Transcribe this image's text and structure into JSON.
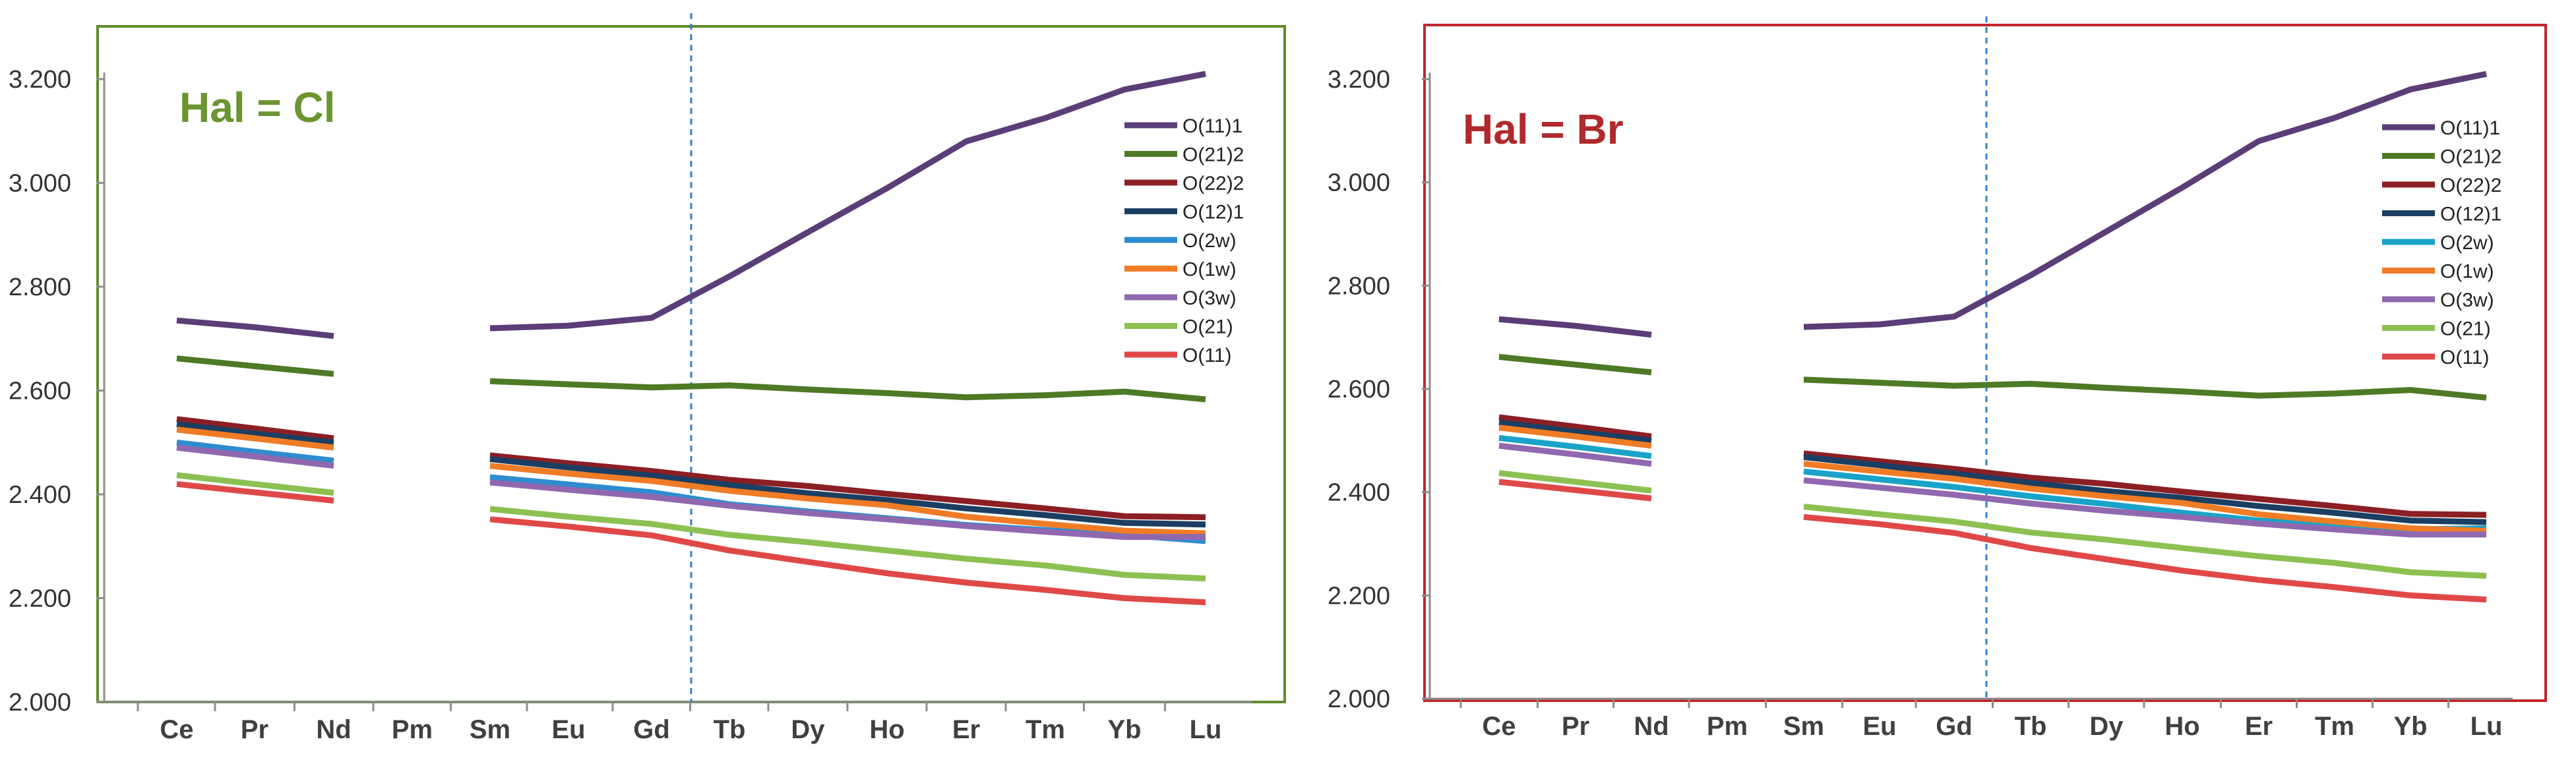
{
  "charts": [
    {
      "id": "cl",
      "title": "Hal = Cl",
      "title_color": "#6b9530",
      "frame_color": "#5e8a2a",
      "divider_label": "Gd|Tb"
    },
    {
      "id": "br",
      "title": "Hal = Br",
      "title_color": "#b0292c",
      "frame_color": "#c0272d",
      "divider_label": "Gd|Tb"
    }
  ],
  "chart_data": [
    {
      "type": "line",
      "title": "Hal = Cl",
      "categories": [
        "Ce",
        "Pr",
        "Nd",
        "Pm",
        "Sm",
        "Eu",
        "Gd",
        "Tb",
        "Dy",
        "Ho",
        "Er",
        "Tm",
        "Yb",
        "Lu"
      ],
      "ylim": [
        2.0,
        3.2
      ],
      "yticks": [
        "2.000",
        "2.200",
        "2.400",
        "2.600",
        "2.800",
        "3.000",
        "3.200"
      ],
      "ytick_values": [
        2.0,
        2.2,
        2.4,
        2.6,
        2.8,
        3.0,
        3.2
      ],
      "divider_after_category": "Gd",
      "legend_position": "top-right",
      "series": [
        {
          "name": "O(11)1",
          "color": "#5b3d78",
          "values": [
            2.735,
            2.722,
            2.705,
            null,
            2.72,
            2.725,
            2.74,
            2.82,
            2.905,
            2.99,
            3.08,
            3.125,
            3.18,
            3.21
          ]
        },
        {
          "name": "O(21)2",
          "color": "#4e7a25",
          "values": [
            2.662,
            2.647,
            2.632,
            null,
            2.618,
            2.612,
            2.606,
            2.61,
            2.602,
            2.595,
            2.587,
            2.591,
            2.598,
            2.583
          ]
        },
        {
          "name": "O(22)2",
          "color": "#8b1f24",
          "values": [
            2.545,
            2.527,
            2.508,
            null,
            2.475,
            2.46,
            2.445,
            2.428,
            2.416,
            2.401,
            2.387,
            2.373,
            2.358,
            2.356
          ]
        },
        {
          "name": "O(12)1",
          "color": "#1b3f63",
          "values": [
            2.535,
            2.517,
            2.5,
            null,
            2.468,
            2.452,
            2.436,
            2.418,
            2.402,
            2.389,
            2.373,
            2.36,
            2.345,
            2.342
          ]
        },
        {
          "name": "O(2w)",
          "color": "#2f8ccf",
          "values": [
            2.5,
            2.482,
            2.465,
            null,
            2.433,
            2.419,
            2.404,
            2.381,
            2.367,
            2.354,
            2.341,
            2.331,
            2.322,
            2.31
          ]
        },
        {
          "name": "O(1w)",
          "color": "#f07c25",
          "values": [
            2.525,
            2.508,
            2.49,
            null,
            2.455,
            2.44,
            2.426,
            2.407,
            2.392,
            2.379,
            2.357,
            2.343,
            2.33,
            2.325
          ]
        },
        {
          "name": "O(3w)",
          "color": "#9068b0",
          "values": [
            2.49,
            2.473,
            2.455,
            null,
            2.423,
            2.409,
            2.395,
            2.378,
            2.364,
            2.352,
            2.339,
            2.328,
            2.318,
            2.318
          ]
        },
        {
          "name": "O(21)",
          "color": "#8cc152",
          "values": [
            2.437,
            2.42,
            2.403,
            null,
            2.372,
            2.357,
            2.343,
            2.322,
            2.308,
            2.292,
            2.276,
            2.263,
            2.245,
            2.238
          ]
        },
        {
          "name": "O(11)",
          "color": "#e04848",
          "values": [
            2.42,
            2.404,
            2.388,
            null,
            2.352,
            2.338,
            2.321,
            2.292,
            2.27,
            2.248,
            2.23,
            2.216,
            2.2,
            2.192
          ]
        }
      ]
    },
    {
      "type": "line",
      "title": "Hal = Br",
      "categories": [
        "Ce",
        "Pr",
        "Nd",
        "Pm",
        "Sm",
        "Eu",
        "Gd",
        "Tb",
        "Dy",
        "Ho",
        "Er",
        "Tm",
        "Yb",
        "Lu"
      ],
      "ylim": [
        2.0,
        3.2
      ],
      "yticks": [
        "2.000",
        "2.200",
        "2.400",
        "2.600",
        "2.800",
        "3.000",
        "3.200"
      ],
      "ytick_values": [
        2.0,
        2.2,
        2.4,
        2.6,
        2.8,
        3.0,
        3.2
      ],
      "divider_after_category": "Gd",
      "legend_position": "top-right",
      "series": [
        {
          "name": "O(11)1",
          "color": "#5b3d78",
          "values": [
            2.735,
            2.722,
            2.705,
            null,
            2.72,
            2.725,
            2.74,
            2.82,
            2.905,
            2.99,
            3.08,
            3.125,
            3.18,
            3.21
          ]
        },
        {
          "name": "O(21)2",
          "color": "#4e7a25",
          "values": [
            2.662,
            2.647,
            2.632,
            null,
            2.618,
            2.612,
            2.606,
            2.61,
            2.602,
            2.595,
            2.587,
            2.591,
            2.598,
            2.583
          ]
        },
        {
          "name": "O(22)2",
          "color": "#8b1f24",
          "values": [
            2.545,
            2.527,
            2.508,
            null,
            2.475,
            2.46,
            2.445,
            2.428,
            2.416,
            2.401,
            2.387,
            2.373,
            2.358,
            2.356
          ]
        },
        {
          "name": "O(12)1",
          "color": "#1b3f63",
          "values": [
            2.535,
            2.517,
            2.5,
            null,
            2.468,
            2.452,
            2.436,
            2.418,
            2.402,
            2.389,
            2.373,
            2.36,
            2.345,
            2.342
          ]
        },
        {
          "name": "O(2w)",
          "color": "#19a3c8",
          "values": [
            2.505,
            2.488,
            2.47,
            null,
            2.44,
            2.425,
            2.41,
            2.392,
            2.377,
            2.36,
            2.345,
            2.335,
            2.328,
            2.33
          ]
        },
        {
          "name": "O(1w)",
          "color": "#f07c25",
          "values": [
            2.525,
            2.508,
            2.49,
            null,
            2.455,
            2.44,
            2.426,
            2.407,
            2.392,
            2.379,
            2.357,
            2.343,
            2.33,
            2.325
          ]
        },
        {
          "name": "O(3w)",
          "color": "#9068b0",
          "values": [
            2.49,
            2.473,
            2.455,
            null,
            2.423,
            2.409,
            2.395,
            2.378,
            2.364,
            2.352,
            2.339,
            2.328,
            2.318,
            2.318
          ]
        },
        {
          "name": "O(21)",
          "color": "#8cc152",
          "values": [
            2.437,
            2.42,
            2.403,
            null,
            2.372,
            2.357,
            2.343,
            2.322,
            2.308,
            2.292,
            2.276,
            2.263,
            2.245,
            2.238
          ]
        },
        {
          "name": "O(11)",
          "color": "#e04848",
          "values": [
            2.42,
            2.404,
            2.388,
            null,
            2.352,
            2.338,
            2.321,
            2.292,
            2.27,
            2.248,
            2.23,
            2.216,
            2.2,
            2.192
          ]
        }
      ]
    }
  ]
}
